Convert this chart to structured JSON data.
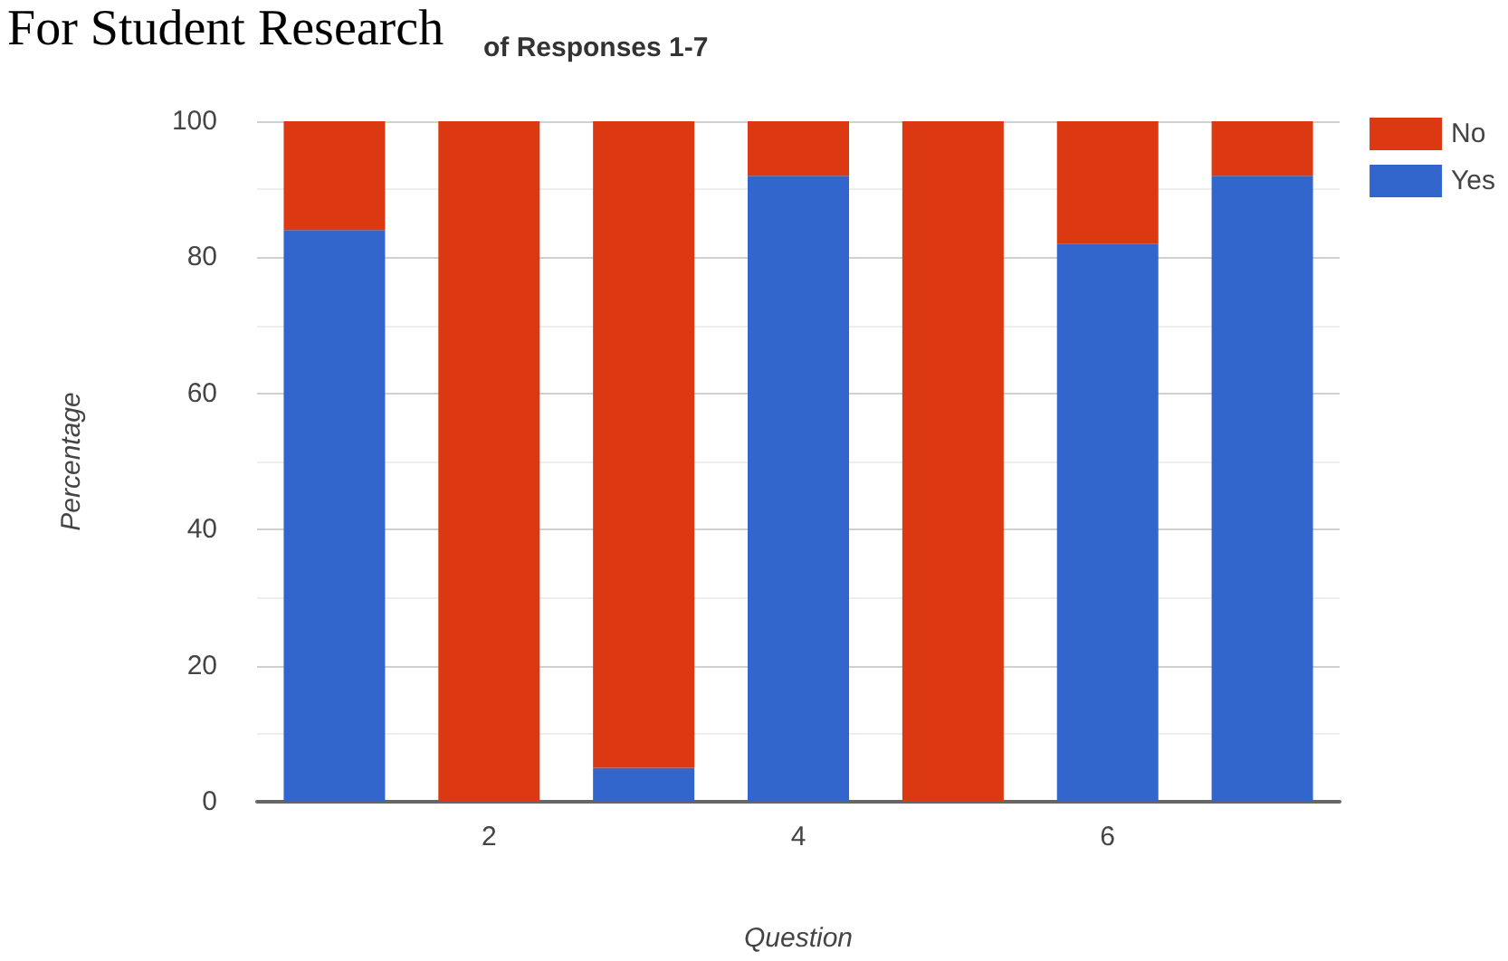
{
  "chart_data": {
    "type": "bar",
    "title": "of Responses 1-7",
    "annotations": [
      "For Student Research"
    ],
    "xlabel": "Question",
    "ylabel": "Percentage",
    "x": [
      1,
      2,
      3,
      4,
      5,
      6,
      7
    ],
    "xlim": [
      0.5,
      7.5
    ],
    "xticks": [
      2,
      4,
      6
    ],
    "ylim": [
      0,
      100
    ],
    "yticks": [
      0,
      20,
      40,
      60,
      80,
      100
    ],
    "stacked": true,
    "grid": "y",
    "legend": "top right",
    "series": [
      {
        "name": "Yes",
        "color": "#3366cc",
        "values": [
          84,
          0,
          5,
          92,
          0,
          82,
          92
        ]
      },
      {
        "name": "No",
        "color": "#dc3912",
        "values": [
          16,
          100,
          95,
          8,
          100,
          18,
          8
        ]
      }
    ]
  }
}
